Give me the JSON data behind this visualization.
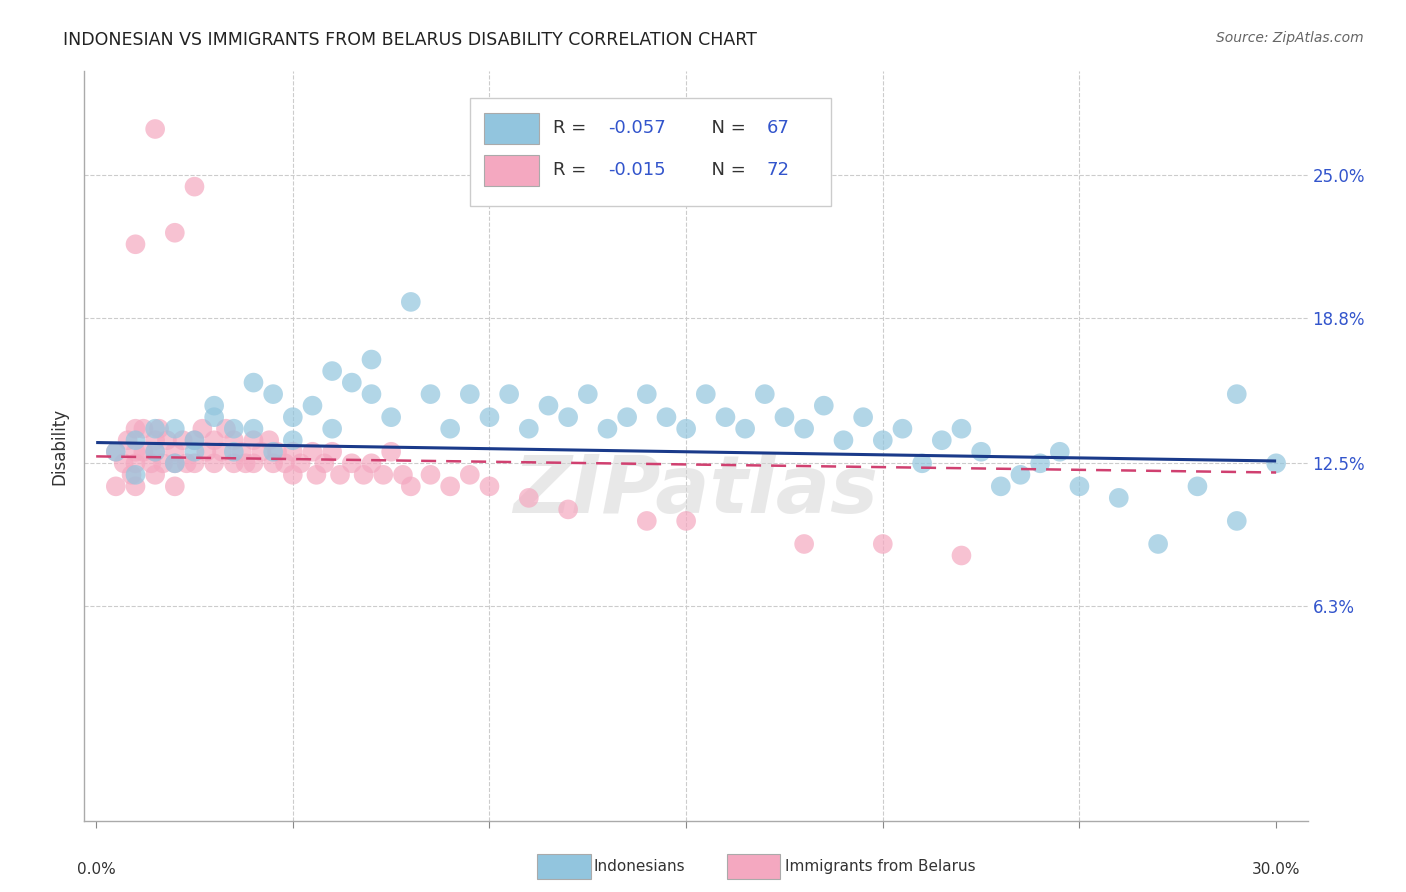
{
  "title": "INDONESIAN VS IMMIGRANTS FROM BELARUS DISABILITY CORRELATION CHART",
  "source": "Source: ZipAtlas.com",
  "ylabel": "Disability",
  "ytick_labels": [
    "25.0%",
    "18.8%",
    "12.5%",
    "6.3%"
  ],
  "ytick_values": [
    0.25,
    0.188,
    0.125,
    0.063
  ],
  "xlim": [
    -0.003,
    0.308
  ],
  "ylim": [
    -0.03,
    0.295
  ],
  "blue_R": "-0.057",
  "blue_N": "67",
  "pink_R": "-0.015",
  "pink_N": "72",
  "blue_color": "#92c5de",
  "pink_color": "#f4a8c0",
  "blue_line_color": "#1a3a8a",
  "pink_line_color": "#d04070",
  "legend_label_blue": "Indonesians",
  "legend_label_pink": "Immigrants from Belarus",
  "watermark": "ZIPatlas",
  "blue_line_x": [
    0.0,
    0.3
  ],
  "blue_line_y": [
    0.134,
    0.126
  ],
  "pink_line_x": [
    0.0,
    0.3
  ],
  "pink_line_y": [
    0.128,
    0.121
  ],
  "blue_x": [
    0.005,
    0.01,
    0.01,
    0.015,
    0.015,
    0.02,
    0.02,
    0.025,
    0.025,
    0.03,
    0.03,
    0.035,
    0.035,
    0.04,
    0.04,
    0.045,
    0.045,
    0.05,
    0.05,
    0.055,
    0.06,
    0.06,
    0.065,
    0.07,
    0.07,
    0.075,
    0.08,
    0.085,
    0.09,
    0.095,
    0.1,
    0.105,
    0.11,
    0.115,
    0.12,
    0.125,
    0.13,
    0.135,
    0.14,
    0.145,
    0.15,
    0.155,
    0.16,
    0.165,
    0.17,
    0.175,
    0.18,
    0.185,
    0.19,
    0.195,
    0.2,
    0.205,
    0.21,
    0.215,
    0.22,
    0.225,
    0.23,
    0.235,
    0.24,
    0.245,
    0.25,
    0.26,
    0.27,
    0.28,
    0.29,
    0.29,
    0.3
  ],
  "blue_y": [
    0.13,
    0.12,
    0.135,
    0.14,
    0.13,
    0.125,
    0.14,
    0.13,
    0.135,
    0.145,
    0.15,
    0.13,
    0.14,
    0.16,
    0.14,
    0.155,
    0.13,
    0.145,
    0.135,
    0.15,
    0.165,
    0.14,
    0.16,
    0.155,
    0.17,
    0.145,
    0.195,
    0.155,
    0.14,
    0.155,
    0.145,
    0.155,
    0.14,
    0.15,
    0.145,
    0.155,
    0.14,
    0.145,
    0.155,
    0.145,
    0.14,
    0.155,
    0.145,
    0.14,
    0.155,
    0.145,
    0.14,
    0.15,
    0.135,
    0.145,
    0.135,
    0.14,
    0.125,
    0.135,
    0.14,
    0.13,
    0.115,
    0.12,
    0.125,
    0.13,
    0.115,
    0.11,
    0.09,
    0.115,
    0.1,
    0.155,
    0.125
  ],
  "pink_x": [
    0.005,
    0.005,
    0.007,
    0.008,
    0.009,
    0.01,
    0.01,
    0.01,
    0.01,
    0.012,
    0.012,
    0.014,
    0.015,
    0.015,
    0.015,
    0.016,
    0.017,
    0.018,
    0.02,
    0.02,
    0.02,
    0.022,
    0.023,
    0.025,
    0.025,
    0.027,
    0.028,
    0.03,
    0.03,
    0.032,
    0.033,
    0.035,
    0.035,
    0.037,
    0.038,
    0.04,
    0.04,
    0.042,
    0.044,
    0.045,
    0.046,
    0.048,
    0.05,
    0.05,
    0.052,
    0.055,
    0.056,
    0.058,
    0.06,
    0.062,
    0.065,
    0.068,
    0.07,
    0.073,
    0.075,
    0.078,
    0.08,
    0.085,
    0.09,
    0.095,
    0.1,
    0.11,
    0.12,
    0.14,
    0.15,
    0.18,
    0.2,
    0.22,
    0.025,
    0.02,
    0.015,
    0.01
  ],
  "pink_y": [
    0.13,
    0.115,
    0.125,
    0.135,
    0.12,
    0.14,
    0.125,
    0.13,
    0.115,
    0.13,
    0.14,
    0.125,
    0.135,
    0.12,
    0.13,
    0.14,
    0.125,
    0.135,
    0.125,
    0.13,
    0.115,
    0.135,
    0.125,
    0.135,
    0.125,
    0.14,
    0.13,
    0.135,
    0.125,
    0.13,
    0.14,
    0.125,
    0.135,
    0.13,
    0.125,
    0.135,
    0.125,
    0.13,
    0.135,
    0.125,
    0.13,
    0.125,
    0.13,
    0.12,
    0.125,
    0.13,
    0.12,
    0.125,
    0.13,
    0.12,
    0.125,
    0.12,
    0.125,
    0.12,
    0.13,
    0.12,
    0.115,
    0.12,
    0.115,
    0.12,
    0.115,
    0.11,
    0.105,
    0.1,
    0.1,
    0.09,
    0.09,
    0.085,
    0.245,
    0.225,
    0.27,
    0.22
  ]
}
